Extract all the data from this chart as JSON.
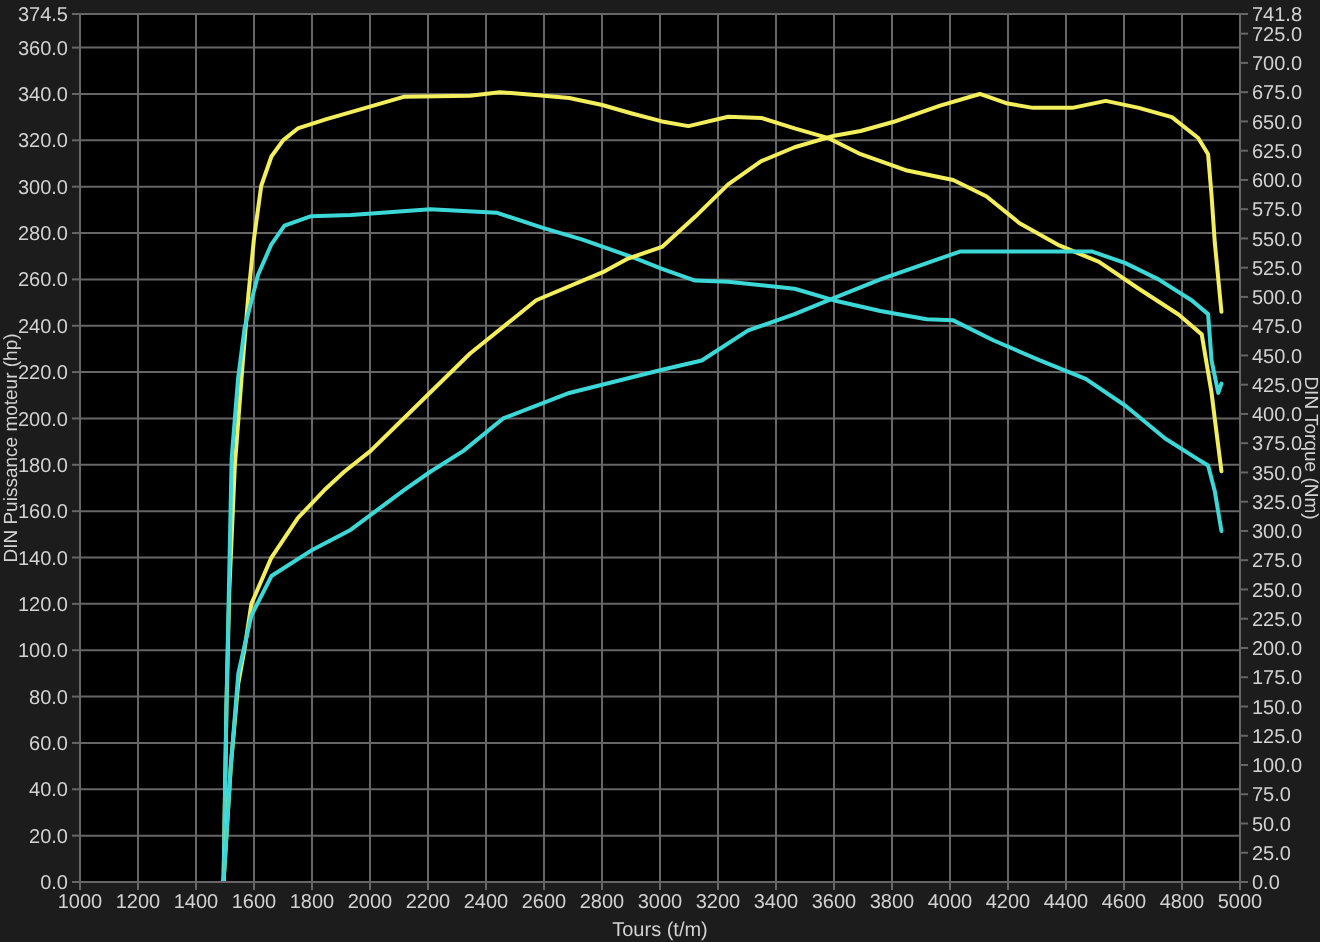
{
  "chart_data": {
    "type": "line",
    "xlabel": "Tours (t/m)",
    "ylabel": "DIN Puissance moteur (hp)",
    "y2label": "DIN Torque (Nm)",
    "xlim": [
      1000,
      5000
    ],
    "xticks": [
      1000,
      1200,
      1400,
      1600,
      1800,
      2000,
      2200,
      2400,
      2600,
      2800,
      3000,
      3200,
      3400,
      3600,
      3800,
      4000,
      4200,
      4400,
      4600,
      4800,
      5000
    ],
    "ylim": [
      0,
      374.5
    ],
    "yticks": [
      {
        "value": 0,
        "label": "0.0"
      },
      {
        "value": 20,
        "label": "20.0"
      },
      {
        "value": 40,
        "label": "40.0"
      },
      {
        "value": 60,
        "label": "60.0"
      },
      {
        "value": 80,
        "label": "80.0"
      },
      {
        "value": 100,
        "label": "100.0"
      },
      {
        "value": 120,
        "label": "120.0"
      },
      {
        "value": 140,
        "label": "140.0"
      },
      {
        "value": 160,
        "label": "160.0"
      },
      {
        "value": 180,
        "label": "180.0"
      },
      {
        "value": 200,
        "label": "200.0"
      },
      {
        "value": 220,
        "label": "220.0"
      },
      {
        "value": 240,
        "label": "240.0"
      },
      {
        "value": 260,
        "label": "260.0"
      },
      {
        "value": 280,
        "label": "280.0"
      },
      {
        "value": 300,
        "label": "300.0"
      },
      {
        "value": 320,
        "label": "320.0"
      },
      {
        "value": 340,
        "label": "340.0"
      },
      {
        "value": 360,
        "label": "360.0"
      },
      374.5
    ],
    "y2lim": [
      0,
      741.8
    ],
    "y2ticks": [
      {
        "value": 0,
        "label": "0.0"
      },
      {
        "value": 25,
        "label": "25.0"
      },
      {
        "value": 50,
        "label": "50.0"
      },
      {
        "value": 75,
        "label": "75.0"
      },
      {
        "value": 100,
        "label": "100.0"
      },
      {
        "value": 125,
        "label": "125.0"
      },
      {
        "value": 150,
        "label": "150.0"
      },
      {
        "value": 175,
        "label": "175.0"
      },
      {
        "value": 200,
        "label": "200.0"
      },
      {
        "value": 225,
        "label": "225.0"
      },
      {
        "value": 250,
        "label": "250.0"
      },
      {
        "value": 275,
        "label": "275.0"
      },
      {
        "value": 300,
        "label": "300.0"
      },
      {
        "value": 325,
        "label": "325.0"
      },
      {
        "value": 350,
        "label": "350.0"
      },
      {
        "value": 375,
        "label": "375.0"
      },
      {
        "value": 400,
        "label": "400.0"
      },
      {
        "value": 425,
        "label": "425.0"
      },
      {
        "value": 450,
        "label": "450.0"
      },
      {
        "value": 475,
        "label": "475.0"
      },
      {
        "value": 500,
        "label": "500.0"
      },
      {
        "value": 525,
        "label": "525.0"
      },
      {
        "value": 550,
        "label": "550.0"
      },
      {
        "value": 575,
        "label": "575.0"
      },
      {
        "value": 600,
        "label": "600.0"
      },
      {
        "value": 625,
        "label": "625.0"
      },
      {
        "value": 650,
        "label": "650.0"
      },
      {
        "value": 675,
        "label": "675.0"
      },
      {
        "value": 700,
        "label": "700.0"
      },
      {
        "value": 725,
        "label": "725.0"
      },
      741.8
    ],
    "grid": true,
    "marker": "none",
    "line_style": "solid",
    "series": [
      {
        "color": "#f2ee5c",
        "axis": "y2",
        "x": [
          1495,
          1505,
          1515,
          1534,
          1560,
          1580,
          1600,
          1625,
          1660,
          1701,
          1751,
          1850,
          1934,
          2116,
          2345,
          2447,
          2600,
          2687,
          2801,
          2900,
          3007,
          3098,
          3235,
          3349,
          3464,
          3578,
          3692,
          3852,
          4011,
          4125,
          4240,
          4377,
          4514,
          4651,
          4788,
          4868,
          4902,
          4913,
          4936
        ],
        "values": [
          0,
          150,
          250,
          356,
          440,
          500,
          550,
          595,
          620,
          634,
          644,
          652,
          658,
          671,
          672,
          675,
          672,
          670,
          664,
          657,
          650,
          646,
          654,
          653,
          644,
          636,
          622,
          608,
          600,
          586,
          563,
          544,
          530,
          507,
          485,
          468,
          418,
          396,
          351
        ]
      },
      {
        "color": "#3cd8d8",
        "axis": "y2",
        "x": [
          1495,
          1505,
          1523,
          1545,
          1568,
          1614,
          1660,
          1705,
          1797,
          1934,
          2208,
          2436,
          2596,
          2733,
          2916,
          3007,
          3121,
          3235,
          3464,
          3601,
          3760,
          3920,
          4011,
          4149,
          4308,
          4468,
          4605,
          4742,
          4850,
          4890,
          4913,
          4936
        ],
        "values": [
          0,
          150,
          362,
          430,
          474,
          519,
          545,
          561,
          569,
          570,
          575,
          572,
          559,
          549,
          533,
          524,
          514,
          513,
          507,
          497,
          488,
          481,
          480,
          463,
          446,
          430,
          407,
          379,
          362,
          356,
          334,
          300
        ]
      },
      {
        "color": "#f2ee5c",
        "x": [
          1495,
          1520,
          1545,
          1568,
          1591,
          1660,
          1751,
          1842,
          1911,
          2002,
          2116,
          2345,
          2573,
          2801,
          2890,
          3007,
          3121,
          3235,
          3349,
          3464,
          3601,
          3692,
          3806,
          3966,
          4103,
          4194,
          4286,
          4422,
          4537,
          4651,
          4765,
          4856,
          4890,
          4902,
          4913,
          4936
        ],
        "values": [
          0,
          50,
          85,
          101,
          120,
          140,
          157,
          169,
          177,
          186,
          200,
          228,
          251,
          263,
          269,
          274,
          287,
          301,
          311,
          317,
          322,
          324,
          328,
          335,
          340,
          336,
          334,
          334,
          337,
          334,
          330,
          321,
          314,
          296,
          276,
          246
        ]
      },
      {
        "color": "#3cd8d8",
        "x": [
          1495,
          1520,
          1546,
          1591,
          1660,
          1797,
          1934,
          2116,
          2208,
          2322,
          2459,
          2687,
          3007,
          3144,
          3304,
          3464,
          3601,
          3760,
          3920,
          4034,
          4194,
          4377,
          4491,
          4605,
          4719,
          4833,
          4890,
          4902,
          4925,
          4936
        ],
        "values": [
          0,
          50,
          90,
          115,
          132,
          143,
          152,
          169,
          177,
          186,
          200,
          211,
          221,
          225,
          238,
          245,
          252,
          260,
          267,
          272,
          272,
          272,
          272,
          267,
          260,
          251,
          245,
          225,
          211,
          215
        ]
      }
    ]
  }
}
